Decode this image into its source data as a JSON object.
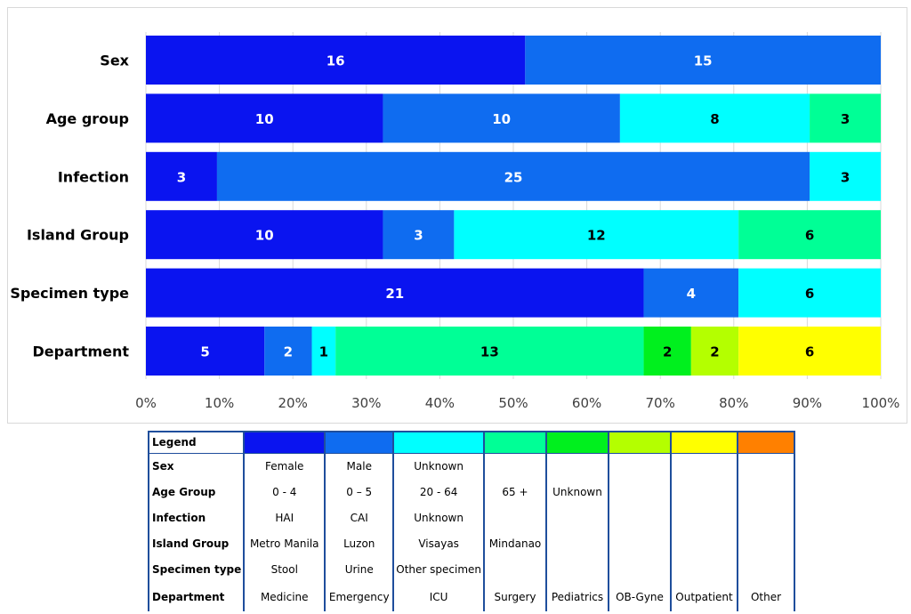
{
  "chart_data": {
    "type": "bar",
    "orientation": "horizontal",
    "stacked": "percent",
    "categories": [
      "Sex",
      "Age group",
      "Infection",
      "Island Group",
      "Specimen type",
      "Department"
    ],
    "segments": [
      [
        16,
        15
      ],
      [
        10,
        10,
        8,
        3
      ],
      [
        3,
        25,
        3
      ],
      [
        10,
        3,
        12,
        6
      ],
      [
        21,
        4,
        6
      ],
      [
        5,
        2,
        1,
        13,
        2,
        2,
        6
      ]
    ],
    "xlim": [
      0,
      100
    ],
    "xticks": [
      "0%",
      "10%",
      "20%",
      "30%",
      "40%",
      "50%",
      "60%",
      "70%",
      "80%",
      "90%",
      "100%"
    ],
    "grid": true,
    "colors": [
      "#0a14f0",
      "#0f6cf0",
      "#00ffff",
      "#00ff96",
      "#00f01e",
      "#b4ff00",
      "#ffff00",
      "#ff8000"
    ],
    "label_colors": [
      "#ffffff",
      "#ffffff",
      "#000000",
      "#000000",
      "#000000",
      "#000000",
      "#000000",
      "#000000"
    ]
  },
  "legend_table": {
    "header": "Legend",
    "rows": [
      {
        "label": "Sex",
        "cells": [
          "Female",
          "Male",
          "Unknown",
          "",
          "",
          "",
          "",
          ""
        ]
      },
      {
        "label": "Age Group",
        "cells": [
          "0 - 4",
          "0 – 5",
          "20 - 64",
          "65 +",
          "Unknown",
          "",
          "",
          ""
        ]
      },
      {
        "label": "Infection",
        "cells": [
          "HAI",
          "CAI",
          "Unknown",
          "",
          "",
          "",
          "",
          ""
        ]
      },
      {
        "label": "Island Group",
        "cells": [
          "Metro Manila",
          "Luzon",
          "Visayas",
          "Mindanao",
          "",
          "",
          "",
          ""
        ]
      },
      {
        "label": "Specimen type",
        "cells": [
          "Stool",
          "Urine",
          "Other specimen",
          "",
          "",
          "",
          "",
          ""
        ]
      },
      {
        "label": "Department",
        "cells": [
          "Medicine",
          "Emergency",
          "ICU",
          "Surgery",
          "Pediatrics",
          "OB-Gyne",
          "Outpatient",
          "Other"
        ]
      }
    ]
  }
}
